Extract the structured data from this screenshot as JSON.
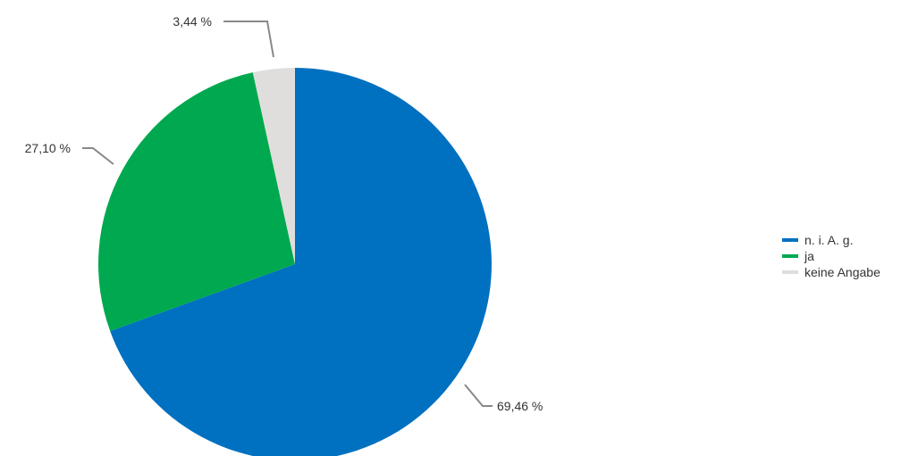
{
  "chart_data": {
    "type": "pie",
    "slices": [
      {
        "label": "n. i. A. g.",
        "value": 69.46,
        "value_label": "69,46 %",
        "color": "#0070c0"
      },
      {
        "label": "ja",
        "value": 27.1,
        "value_label": "27,10 %",
        "color": "#00a94f"
      },
      {
        "label": "keine Angabe",
        "value": 3.44,
        "value_label": "3,44 %",
        "color": "#e0dedd"
      }
    ],
    "start_angle": "12 o'clock",
    "direction": "clockwise",
    "legend_position": "right"
  }
}
